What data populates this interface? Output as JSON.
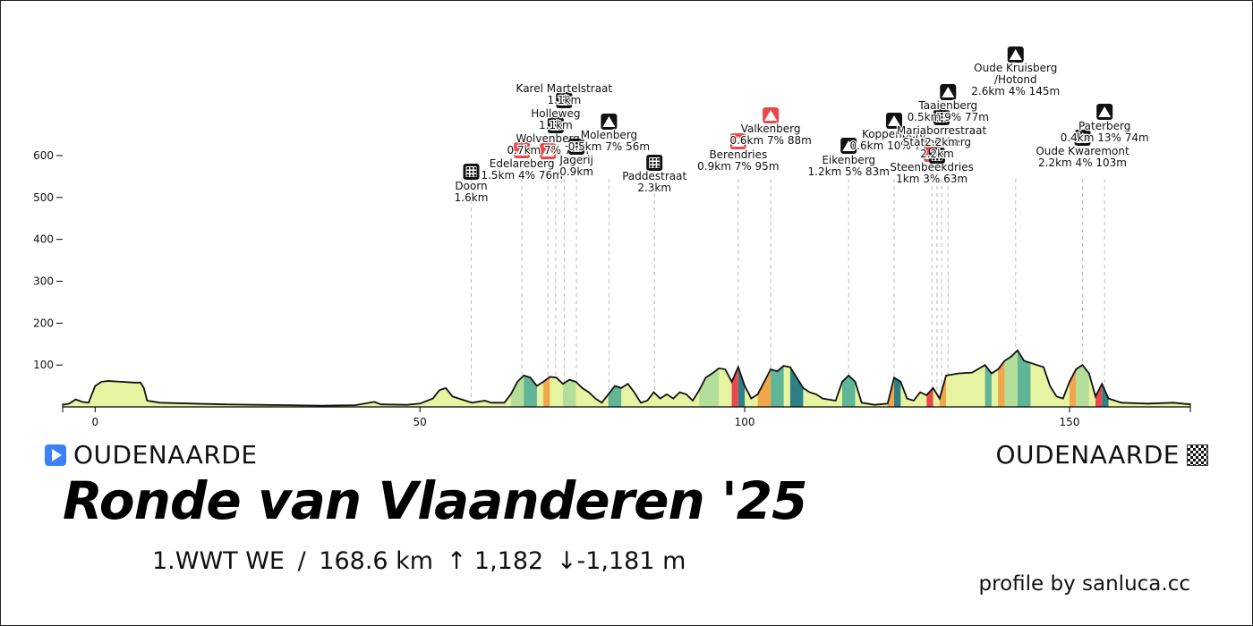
{
  "header": {
    "start": "OUDENAARDE",
    "finish": "OUDENAARDE",
    "start_icon": "play-icon",
    "finish_icon": "checkered-flag-icon",
    "title": "Ronde van Vlaanderen '25",
    "category": "1.WWT WE",
    "separator": "/",
    "distance": "168.6 km",
    "ascent": "↑ 1,182",
    "descent": "↓-1,181 m",
    "credit": "profile by sanluca.cc"
  },
  "colors": {
    "line": "#111111",
    "gentle": "#e6f3a0",
    "moderate": "#b3de9a",
    "steep": "#5fb596",
    "very_steep": "#2f7f86",
    "orange": "#f0a64a",
    "red": "#e8484b",
    "climb_marker": "#111111",
    "sector_marker": "#111111",
    "red_marker": "#e8484b"
  },
  "chart_data": {
    "type": "area",
    "xlabel": "",
    "ylabel": "",
    "xlim": [
      -5,
      168.6
    ],
    "ylim": [
      0,
      600
    ],
    "xticks": [
      0,
      50,
      100,
      150
    ],
    "yticks": [
      100,
      200,
      300,
      400,
      500,
      600
    ],
    "profile": [
      [
        -5,
        5
      ],
      [
        -4,
        8
      ],
      [
        -3,
        18
      ],
      [
        -2,
        12
      ],
      [
        -1,
        10
      ],
      [
        0,
        50
      ],
      [
        1,
        60
      ],
      [
        2,
        62
      ],
      [
        4,
        60
      ],
      [
        6,
        58
      ],
      [
        7,
        58
      ],
      [
        7.5,
        45
      ],
      [
        8,
        15
      ],
      [
        10,
        10
      ],
      [
        15,
        8
      ],
      [
        20,
        6
      ],
      [
        25,
        5
      ],
      [
        30,
        4
      ],
      [
        35,
        3
      ],
      [
        40,
        4
      ],
      [
        43,
        12
      ],
      [
        44,
        6
      ],
      [
        48,
        5
      ],
      [
        50,
        8
      ],
      [
        52,
        20
      ],
      [
        53,
        40
      ],
      [
        54,
        45
      ],
      [
        55,
        25
      ],
      [
        56,
        20
      ],
      [
        57,
        15
      ],
      [
        58,
        10
      ],
      [
        60,
        15
      ],
      [
        61,
        10
      ],
      [
        63,
        10
      ],
      [
        64,
        30
      ],
      [
        65,
        60
      ],
      [
        66,
        75
      ],
      [
        67,
        70
      ],
      [
        68,
        50
      ],
      [
        69,
        60
      ],
      [
        70,
        72
      ],
      [
        71,
        70
      ],
      [
        72,
        55
      ],
      [
        73,
        65
      ],
      [
        74,
        60
      ],
      [
        75,
        45
      ],
      [
        76,
        35
      ],
      [
        77,
        20
      ],
      [
        78,
        10
      ],
      [
        79,
        30
      ],
      [
        80,
        50
      ],
      [
        81,
        45
      ],
      [
        82,
        55
      ],
      [
        83,
        35
      ],
      [
        84,
        10
      ],
      [
        85,
        15
      ],
      [
        86,
        35
      ],
      [
        87,
        20
      ],
      [
        88,
        30
      ],
      [
        89,
        20
      ],
      [
        90,
        35
      ],
      [
        91,
        30
      ],
      [
        92,
        15
      ],
      [
        93,
        40
      ],
      [
        94,
        70
      ],
      [
        95,
        80
      ],
      [
        96,
        92
      ],
      [
        97,
        90
      ],
      [
        98,
        60
      ],
      [
        99,
        95
      ],
      [
        100,
        50
      ],
      [
        101,
        20
      ],
      [
        102,
        30
      ],
      [
        103,
        60
      ],
      [
        104,
        90
      ],
      [
        105,
        85
      ],
      [
        106,
        98
      ],
      [
        107,
        95
      ],
      [
        108,
        70
      ],
      [
        109,
        45
      ],
      [
        110,
        35
      ],
      [
        111,
        30
      ],
      [
        112,
        20
      ],
      [
        114,
        15
      ],
      [
        115,
        60
      ],
      [
        116,
        75
      ],
      [
        117,
        60
      ],
      [
        118,
        10
      ],
      [
        120,
        5
      ],
      [
        122,
        8
      ],
      [
        123,
        70
      ],
      [
        124,
        60
      ],
      [
        125,
        20
      ],
      [
        126,
        15
      ],
      [
        127,
        35
      ],
      [
        128,
        28
      ],
      [
        129,
        45
      ],
      [
        130,
        20
      ],
      [
        131,
        75
      ],
      [
        133,
        80
      ],
      [
        135,
        82
      ],
      [
        137,
        100
      ],
      [
        138,
        80
      ],
      [
        139,
        90
      ],
      [
        140,
        110
      ],
      [
        141,
        120
      ],
      [
        142,
        135
      ],
      [
        143,
        110
      ],
      [
        144,
        105
      ],
      [
        145,
        100
      ],
      [
        146,
        95
      ],
      [
        147,
        50
      ],
      [
        148,
        25
      ],
      [
        149,
        20
      ],
      [
        150,
        60
      ],
      [
        151,
        90
      ],
      [
        152,
        100
      ],
      [
        153,
        80
      ],
      [
        154,
        25
      ],
      [
        155,
        55
      ],
      [
        156,
        20
      ],
      [
        158,
        10
      ],
      [
        162,
        8
      ],
      [
        166,
        10
      ],
      [
        168.6,
        6
      ]
    ],
    "gradient_bands": [
      {
        "from": 0,
        "to": 7.5,
        "class": "gentle"
      },
      {
        "from": 52,
        "to": 55,
        "class": "gentle"
      },
      {
        "from": 64,
        "to": 66,
        "class": "moderate"
      },
      {
        "from": 66,
        "to": 68,
        "class": "steep"
      },
      {
        "from": 69,
        "to": 70,
        "class": "orange"
      },
      {
        "from": 72,
        "to": 74,
        "class": "moderate"
      },
      {
        "from": 79,
        "to": 81,
        "class": "steep"
      },
      {
        "from": 93,
        "to": 96,
        "class": "moderate"
      },
      {
        "from": 98,
        "to": 99,
        "class": "red"
      },
      {
        "from": 99,
        "to": 100,
        "class": "very_steep"
      },
      {
        "from": 102,
        "to": 104,
        "class": "orange"
      },
      {
        "from": 104,
        "to": 106,
        "class": "steep"
      },
      {
        "from": 107,
        "to": 109,
        "class": "very_steep"
      },
      {
        "from": 115,
        "to": 117,
        "class": "steep"
      },
      {
        "from": 122,
        "to": 123,
        "class": "orange"
      },
      {
        "from": 123,
        "to": 124,
        "class": "very_steep"
      },
      {
        "from": 128,
        "to": 129,
        "class": "red"
      },
      {
        "from": 130,
        "to": 131,
        "class": "orange"
      },
      {
        "from": 137,
        "to": 138,
        "class": "steep"
      },
      {
        "from": 139,
        "to": 140,
        "class": "orange"
      },
      {
        "from": 140,
        "to": 142,
        "class": "moderate"
      },
      {
        "from": 142,
        "to": 144,
        "class": "steep"
      },
      {
        "from": 150,
        "to": 151,
        "class": "orange"
      },
      {
        "from": 151,
        "to": 153,
        "class": "moderate"
      },
      {
        "from": 154,
        "to": 155,
        "class": "red"
      },
      {
        "from": 155,
        "to": 156,
        "class": "very_steep"
      }
    ],
    "markers": [
      {
        "name": "Doorn",
        "info": "1.6km",
        "km": 57.9,
        "type": "sector"
      },
      {
        "name": "Edelareberg",
        "info": "1.5km 4% 76m",
        "km": 65.7,
        "type": "red-climb"
      },
      {
        "name": "Wolvenberg",
        "info": "0.7km 7% 72m",
        "km": 69.7,
        "type": "red-climb"
      },
      {
        "name": "Holleweg",
        "info": "1.1km",
        "km": 70.9,
        "type": "sector"
      },
      {
        "name": "Karel Martelstraat",
        "info": "1.1km",
        "km": 72.2,
        "type": "sector"
      },
      {
        "name": "Jagerij",
        "info": "0.9km",
        "km": 74.1,
        "type": "sector"
      },
      {
        "name": "Molenberg",
        "info": "0.5km 7% 56m",
        "km": 79.1,
        "type": "climb"
      },
      {
        "name": "Paddestraat",
        "info": "2.3km",
        "km": 86.1,
        "type": "sector"
      },
      {
        "name": "Berendries",
        "info": "0.9km 7% 95m",
        "km": 99.0,
        "type": "red-climb"
      },
      {
        "name": "Valkenberg",
        "info": "0.6km 7% 88m",
        "km": 104.0,
        "type": "red-climb"
      },
      {
        "name": "Eikenberg",
        "info": "1.2km 5% 83m",
        "km": 116.0,
        "type": "climb"
      },
      {
        "name": "Koppenberg",
        "info": "0.6km 10% 77m",
        "km": 123.0,
        "type": "climb"
      },
      {
        "name": "Steenbeekdries",
        "info": "1km 3% 63m",
        "km": 128.8,
        "type": "red-climb"
      },
      {
        "name": "Stationsberg",
        "info": "2.2km",
        "km": 129.6,
        "type": "sector"
      },
      {
        "name": "Mariaborrestraat",
        "info": "2.2km",
        "km": 130.3,
        "type": "sector"
      },
      {
        "name": "Taaienberg",
        "info": "0.5km 9% 77m",
        "km": 131.3,
        "type": "climb"
      },
      {
        "name": "Oude Kruisberg\n/Hotond",
        "info": "2.6km 4% 145m",
        "km": 141.7,
        "type": "climb"
      },
      {
        "name": "Oude Kwaremont",
        "info": "2.2km 4% 103m",
        "km": 152.0,
        "type": "climb"
      },
      {
        "name": "Paterberg",
        "info": "0.4km 13% 74m",
        "km": 155.4,
        "type": "climb"
      }
    ]
  }
}
